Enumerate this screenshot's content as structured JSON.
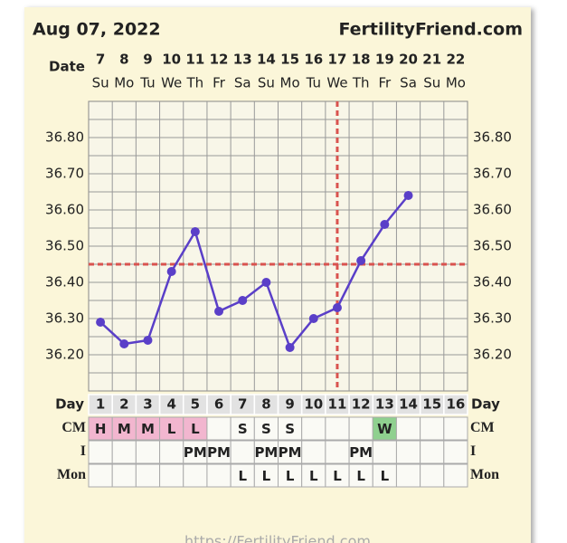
{
  "header": {
    "date": "Aug 07, 2022",
    "site": "FertilityFriend.com"
  },
  "chart_data": {
    "type": "line",
    "date_label": "Date",
    "dates": [
      "7",
      "8",
      "9",
      "10",
      "11",
      "12",
      "13",
      "14",
      "15",
      "16",
      "17",
      "18",
      "19",
      "20",
      "21",
      "22"
    ],
    "weekdays": [
      "Su",
      "Mo",
      "Tu",
      "We",
      "Th",
      "Fr",
      "Sa",
      "Su",
      "Mo",
      "Tu",
      "We",
      "Th",
      "Fr",
      "Sa",
      "Su",
      "Mo"
    ],
    "day_label": "Day",
    "x": [
      1,
      2,
      3,
      4,
      5,
      6,
      7,
      8,
      9,
      10,
      11,
      12,
      13,
      14,
      15,
      16
    ],
    "xlim": [
      0.5,
      16.5
    ],
    "values": [
      36.29,
      36.23,
      36.24,
      36.43,
      36.54,
      36.32,
      36.35,
      36.4,
      36.22,
      36.3,
      36.33,
      36.46,
      36.56,
      36.64,
      null,
      null
    ],
    "color": "#5a3fc8",
    "ylim": [
      36.1,
      36.9
    ],
    "yticks": [
      {
        "value": 36.2,
        "label": "36.20"
      },
      {
        "value": 36.3,
        "label": "36.30"
      },
      {
        "value": 36.4,
        "label": "36.40"
      },
      {
        "value": 36.5,
        "label": "36.50"
      },
      {
        "value": 36.6,
        "label": "36.60"
      },
      {
        "value": 36.7,
        "label": "36.70"
      },
      {
        "value": 36.8,
        "label": "36.80"
      }
    ],
    "minor_yticks": [
      36.15,
      36.25,
      36.35,
      36.45,
      36.55,
      36.65,
      36.75,
      36.85
    ],
    "grid": true,
    "coverline": 36.45,
    "ovulation_day": 11,
    "marker_color": "#d9534f",
    "rows": [
      {
        "label": "CM",
        "values": [
          "H",
          "M",
          "M",
          "L",
          "L",
          null,
          "S",
          "S",
          "S",
          null,
          null,
          null,
          "W",
          null,
          null,
          null
        ],
        "colors": [
          "#f2b6cf",
          "#f2b6cf",
          "#f2b6cf",
          "#f2b6cf",
          "#f2b6cf",
          null,
          null,
          null,
          null,
          null,
          null,
          null,
          "#8fd08f",
          null,
          null,
          null
        ]
      },
      {
        "label": "I",
        "values": [
          null,
          null,
          null,
          null,
          "PM",
          "PM",
          null,
          "PM",
          "PM",
          null,
          null,
          "PM",
          null,
          null,
          null,
          null
        ]
      },
      {
        "label": "Mon",
        "values": [
          null,
          null,
          null,
          null,
          null,
          null,
          "L",
          "L",
          "L",
          "L",
          "L",
          "L",
          "L",
          null,
          null,
          null
        ]
      }
    ]
  },
  "footer": "https://FertilityFriend.com"
}
